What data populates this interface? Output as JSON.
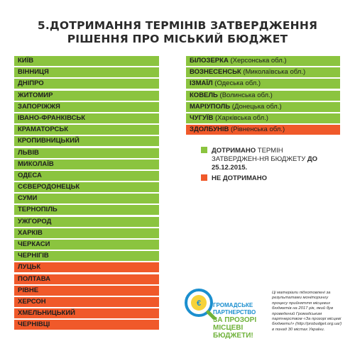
{
  "title": {
    "line1": "5.ДОТРИМАННЯ ТЕРМІНІВ ЗАТВЕРДЖЕННЯ",
    "line2": "РІШЕННЯ ПРО МІСЬКИЙ БЮДЖЕТ"
  },
  "colors": {
    "complied": "#8bc43f",
    "not_complied": "#f0592a"
  },
  "cities_left": [
    {
      "name": "КИЇВ",
      "status": "complied"
    },
    {
      "name": "ВІННИЦЯ",
      "status": "complied"
    },
    {
      "name": "ДНІПРО",
      "status": "complied"
    },
    {
      "name": "ЖИТОМИР",
      "status": "complied"
    },
    {
      "name": "ЗАПОРІЖЖЯ",
      "status": "complied"
    },
    {
      "name": "ІВАНО-ФРАНКІВСЬК",
      "status": "complied"
    },
    {
      "name": "КРАМАТОРСЬК",
      "status": "complied"
    },
    {
      "name": "КРОПИВНИЦЬКИЙ",
      "status": "complied"
    },
    {
      "name": "ЛЬВІВ",
      "status": "complied"
    },
    {
      "name": "МИКОЛАЇВ",
      "status": "complied"
    },
    {
      "name": "ОДЕСА",
      "status": "complied"
    },
    {
      "name": "СЄВЕРОДОНЕЦЬК",
      "status": "complied"
    },
    {
      "name": "СУМИ",
      "status": "complied"
    },
    {
      "name": "ТЕРНОПІЛЬ",
      "status": "complied"
    },
    {
      "name": "УЖГОРОД",
      "status": "complied"
    },
    {
      "name": "ХАРКІВ",
      "status": "complied"
    },
    {
      "name": "ЧЕРКАСИ",
      "status": "complied"
    },
    {
      "name": "ЧЕРНІГІВ",
      "status": "complied"
    },
    {
      "name": "ЛУЦЬК",
      "status": "not_complied"
    },
    {
      "name": "ПОЛТАВА",
      "status": "not_complied"
    },
    {
      "name": "РІВНЕ",
      "status": "not_complied"
    },
    {
      "name": "ХЕРСОН",
      "status": "not_complied"
    },
    {
      "name": "ХМЕЛЬНИЦЬКИЙ",
      "status": "not_complied"
    },
    {
      "name": "ЧЕРНІВЦІ",
      "status": "not_complied"
    }
  ],
  "cities_right": [
    {
      "name": "БІЛОЗЕРКА",
      "region": "(Херсонська обл.)",
      "status": "complied"
    },
    {
      "name": "ВОЗНЕСЕНСЬК",
      "region": "(Миколаївська обл.)",
      "status": "complied"
    },
    {
      "name": "ІЗМАЇЛ",
      "region": "(Одеська обл.)",
      "status": "complied"
    },
    {
      "name": "КОВЕЛЬ",
      "region": "(Волинська обл.)",
      "status": "complied"
    },
    {
      "name": "МАРІУПОЛЬ",
      "region": "(Донецька обл.)",
      "status": "complied"
    },
    {
      "name": "ЧУГУЇВ",
      "region": "(Харківська обл.)",
      "status": "complied"
    },
    {
      "name": "ЗДОЛБУНІВ",
      "region": "(Рівненська обл.)",
      "status": "not_complied"
    }
  ],
  "legend": {
    "complied_bold": "ДОТРИМАНО",
    "complied_text": " ТЕРМІН ЗАТВЕРДЖЕН-НЯ БЮДЖЕТУ ",
    "complied_date": "ДО 25.12.2015.",
    "not_complied": "НЕ ДОТРИМАНО"
  },
  "logo": {
    "line1": "ГРОМАДСЬКЕ ПАРТНЕРСТВО",
    "line2": "ЗА ПРОЗОРІ МІСЦЕВІ БЮДЖЕТИ!"
  },
  "footnote": "Ці матеріали підготовлені за результатами моніторингу процесу прийняття місцевих бюджетів на 2017 рік, який був проведений Громадським партнерством «За прозорі місцеві бюджети!» (http://probudget.org.ua/) в понад 30 містах України."
}
